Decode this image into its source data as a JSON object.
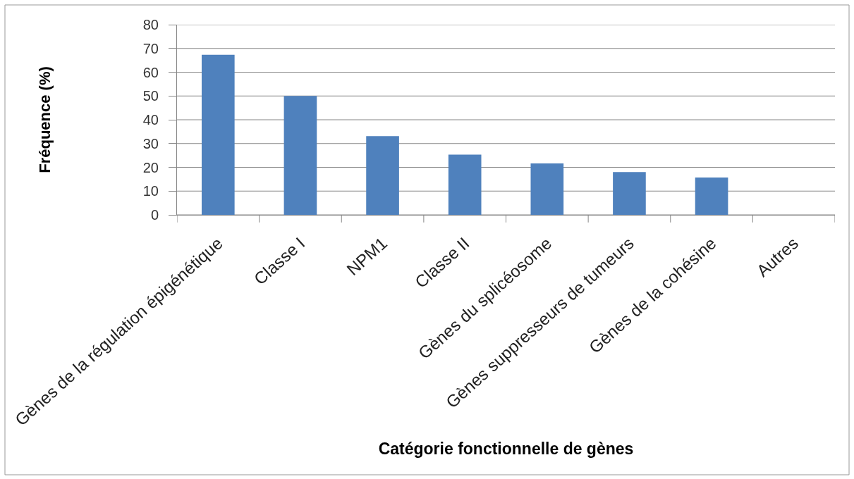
{
  "chart_data": {
    "type": "bar",
    "xlabel": "Catégorie fonctionnelle de gènes",
    "ylabel": "Fréquence (%)",
    "categories": [
      "Gènes de la régulation épigénétique",
      "Classe I",
      "NPM1",
      "Classe II",
      "Gènes du splicéosome",
      "Gènes suppresseurs de tumeurs",
      "Gènes de la cohésine",
      "Autres"
    ],
    "values": [
      67.3,
      50,
      33.1,
      25.3,
      21.6,
      18,
      15.7,
      0
    ],
    "color": "#4f81bd",
    "ylim": [
      0,
      80
    ],
    "yticks": [
      0,
      10,
      20,
      30,
      40,
      50,
      60,
      70,
      80
    ],
    "grid": "y"
  }
}
